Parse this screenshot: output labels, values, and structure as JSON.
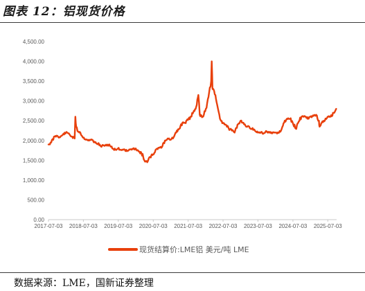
{
  "figure": {
    "title": "图表 12：铝现货价格",
    "source": "数据来源：LME，国新证券整理"
  },
  "colors": {
    "series": "#E8400C",
    "axis": "#c8c8c8",
    "tick_text": "#595959"
  },
  "chart_data": {
    "type": "line",
    "title": "",
    "xlabel": "",
    "ylabel": "",
    "ylim": [
      0,
      4500
    ],
    "yticks": [
      "4,500.00",
      "4,000.00",
      "3,500.00",
      "3,000.00",
      "2,500.00",
      "2,000.00",
      "1,500.00",
      "1,000.00",
      "500.00",
      "0.00"
    ],
    "xlim": [
      "2017-07-03",
      "2025-10-03"
    ],
    "xticks": [
      "2017-07-03",
      "2018-07-03",
      "2019-07-03",
      "2020-07-03",
      "2021-07-03",
      "2022-07-03",
      "2023-07-03",
      "2024-07-03",
      "2025-07-03"
    ],
    "grid": false,
    "legend": "bottom",
    "series": [
      {
        "name": "现货结算价:LME铝 美元/吨 LME",
        "x": [
          "2017-07-03",
          "2017-08-01",
          "2017-09-05",
          "2017-10-02",
          "2017-11-01",
          "2017-12-01",
          "2018-01-02",
          "2018-02-01",
          "2018-03-01",
          "2018-04-03",
          "2018-04-10",
          "2018-04-19",
          "2018-05-01",
          "2018-06-01",
          "2018-07-02",
          "2018-08-01",
          "2018-09-03",
          "2018-10-01",
          "2018-11-01",
          "2018-12-03",
          "2019-01-02",
          "2019-02-01",
          "2019-03-01",
          "2019-04-01",
          "2019-05-01",
          "2019-06-03",
          "2019-07-01",
          "2019-08-01",
          "2019-09-02",
          "2019-10-01",
          "2019-11-01",
          "2019-12-02",
          "2020-01-02",
          "2020-02-03",
          "2020-03-02",
          "2020-04-01",
          "2020-05-01",
          "2020-06-01",
          "2020-07-01",
          "2020-08-03",
          "2020-09-01",
          "2020-10-01",
          "2020-11-02",
          "2020-12-01",
          "2021-01-04",
          "2021-02-01",
          "2021-03-01",
          "2021-04-01",
          "2021-05-04",
          "2021-06-01",
          "2021-07-01",
          "2021-08-02",
          "2021-09-01",
          "2021-10-01",
          "2021-10-18",
          "2021-11-01",
          "2021-12-01",
          "2022-01-04",
          "2022-02-01",
          "2022-03-01",
          "2022-03-07",
          "2022-03-15",
          "2022-04-01",
          "2022-05-03",
          "2022-06-01",
          "2022-07-01",
          "2022-08-01",
          "2022-09-01",
          "2022-10-03",
          "2022-11-01",
          "2022-12-01",
          "2023-01-03",
          "2023-02-01",
          "2023-03-01",
          "2023-04-03",
          "2023-05-02",
          "2023-06-01",
          "2023-07-03",
          "2023-08-01",
          "2023-09-01",
          "2023-10-02",
          "2023-11-01",
          "2023-12-01",
          "2024-01-02",
          "2024-02-01",
          "2024-03-01",
          "2024-04-02",
          "2024-05-01",
          "2024-06-03",
          "2024-07-01",
          "2024-08-01",
          "2024-09-02",
          "2024-10-01",
          "2024-11-01",
          "2024-12-02",
          "2025-01-02",
          "2025-02-03",
          "2025-03-03",
          "2025-04-01",
          "2025-04-08",
          "2025-05-01",
          "2025-06-02",
          "2025-07-01",
          "2025-08-01",
          "2025-09-01",
          "2025-09-29"
        ],
        "values": [
          1900,
          1950,
          2100,
          2120,
          2080,
          2150,
          2200,
          2180,
          2100,
          2050,
          2600,
          2350,
          2250,
          2200,
          2070,
          2030,
          2000,
          2020,
          1950,
          1920,
          1850,
          1880,
          1870,
          1900,
          1800,
          1770,
          1800,
          1760,
          1780,
          1730,
          1770,
          1780,
          1800,
          1720,
          1680,
          1500,
          1450,
          1580,
          1650,
          1780,
          1820,
          1830,
          2000,
          2050,
          2020,
          2080,
          2200,
          2300,
          2450,
          2450,
          2520,
          2600,
          2750,
          2900,
          3150,
          2650,
          2600,
          2800,
          3100,
          3500,
          4000,
          3300,
          3250,
          2900,
          2550,
          2450,
          2400,
          2300,
          2250,
          2200,
          2400,
          2500,
          2450,
          2350,
          2350,
          2300,
          2250,
          2200,
          2200,
          2180,
          2230,
          2200,
          2180,
          2200,
          2190,
          2250,
          2450,
          2550,
          2550,
          2450,
          2300,
          2480,
          2600,
          2620,
          2550,
          2600,
          2620,
          2650,
          2500,
          2350,
          2450,
          2500,
          2600,
          2600,
          2700,
          2800
        ]
      }
    ]
  }
}
